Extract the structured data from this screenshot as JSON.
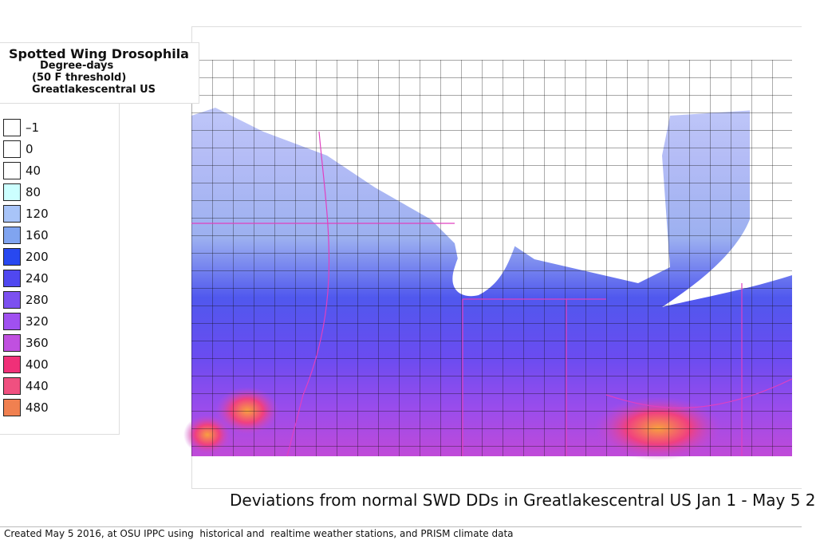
{
  "title": {
    "lines": [
      "Spotted Wing Drosophila",
      "Degree-days",
      "(50 F threshold)",
      "Greatlakescentral US"
    ]
  },
  "legend": [
    {
      "label": "–1",
      "color": "#ffffff"
    },
    {
      "label": "0",
      "color": "#ffffff"
    },
    {
      "label": "40",
      "color": "#ffffff"
    },
    {
      "label": "80",
      "color": "#ccffff"
    },
    {
      "label": "120",
      "color": "#a8c4f8"
    },
    {
      "label": "160",
      "color": "#80a4f0"
    },
    {
      "label": "200",
      "color": "#2848f0"
    },
    {
      "label": "240",
      "color": "#5048f0"
    },
    {
      "label": "280",
      "color": "#7c50f0"
    },
    {
      "label": "320",
      "color": "#a050f0"
    },
    {
      "label": "360",
      "color": "#c050e0"
    },
    {
      "label": "400",
      "color": "#f03078"
    },
    {
      "label": "440",
      "color": "#f05080"
    },
    {
      "label": "480",
      "color": "#f08050"
    }
  ],
  "caption": "Deviations from normal SWD DDs in Greatlakescentral US Jan 1 - May 5 2",
  "footer": "Created May 5 2016, at OSU IPPC using  historical and  realtime weather stations, and PRISM climate data"
}
